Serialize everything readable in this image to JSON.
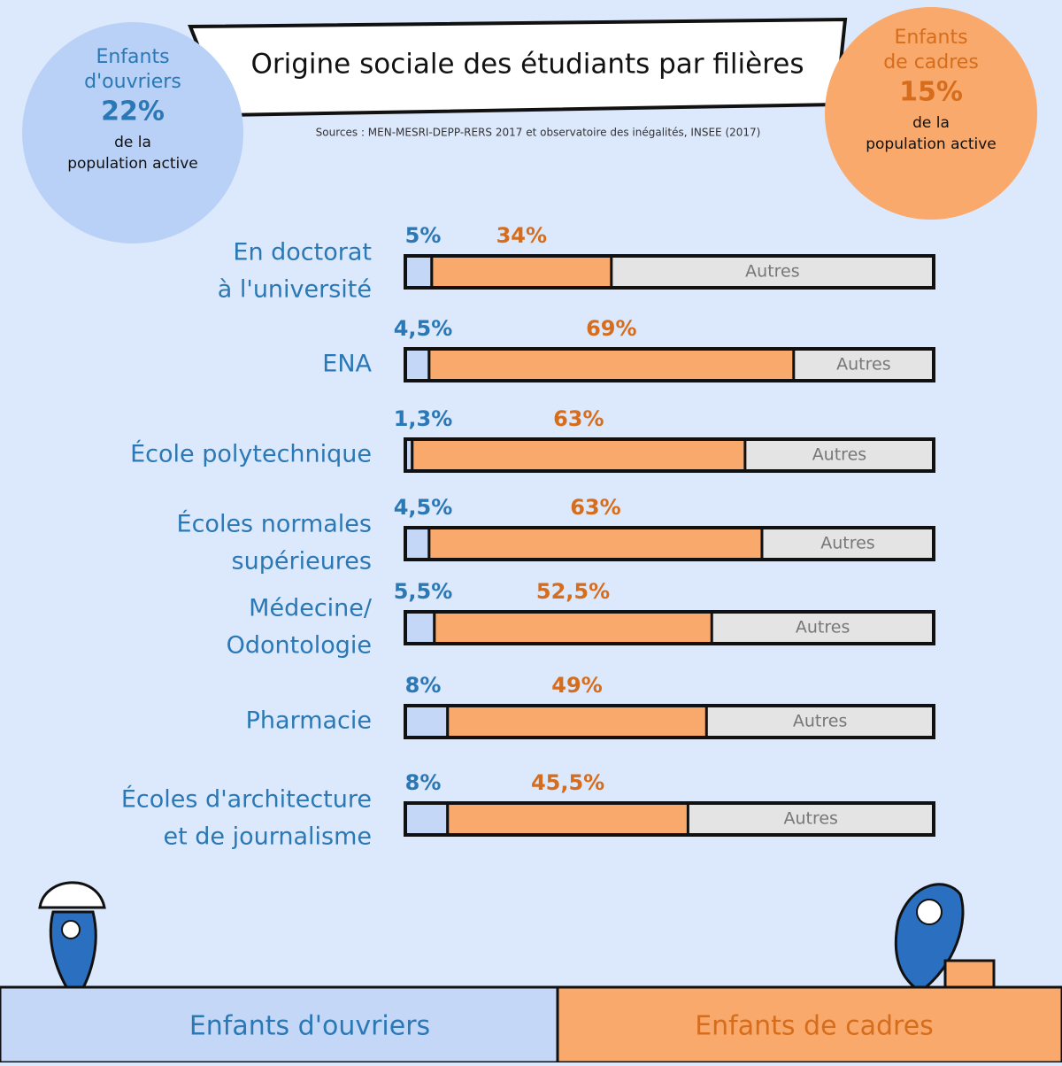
{
  "chart_data": {
    "type": "stacked-hbar",
    "title": "Origine sociale des étudiants par filières",
    "subtitle": "Sources : MEN-MESRI-DEPP-RERS 2017 et observatoire des inégalités, INSEE (2017)",
    "categories": [
      [
        "En doctorat",
        "à l'université"
      ],
      [
        "ENA"
      ],
      [
        "École polytechnique"
      ],
      [
        "Écoles normales",
        "supérieures"
      ],
      [
        "Médecine/",
        "Odontologie"
      ],
      [
        "Pharmacie"
      ],
      [
        "Écoles d'architecture",
        "et de journalisme"
      ]
    ],
    "series": [
      {
        "name": "Enfants d'ouvriers",
        "color": "#c4d7f6",
        "label_color": "#2a78b5",
        "values": [
          5,
          4.5,
          1.3,
          4.5,
          5.5,
          8,
          8
        ],
        "value_labels": [
          "5%",
          "4,5%",
          "1,3%",
          "4,5%",
          "5,5%",
          "8%",
          "8%"
        ]
      },
      {
        "name": "Enfants de cadres",
        "color": "#f8a96b",
        "label_color": "#d66d1c",
        "values": [
          34,
          69,
          63,
          63,
          52.5,
          49,
          45.5
        ],
        "value_labels": [
          "34%",
          "69%",
          "63%",
          "63%",
          "52,5%",
          "49%",
          "45,5%"
        ]
      }
    ],
    "remainder_label": "Autres",
    "remainder_color": "#e4e4e4",
    "xlim": [
      0,
      100
    ],
    "annotations": [
      {
        "title": [
          "Enfants",
          "d'ouvriers"
        ],
        "value": "22%",
        "text": [
          "de la",
          "population active"
        ]
      },
      {
        "title": [
          "Enfants",
          "de cadres"
        ],
        "value": "15%",
        "text": [
          "de la",
          "population active"
        ]
      }
    ]
  }
}
